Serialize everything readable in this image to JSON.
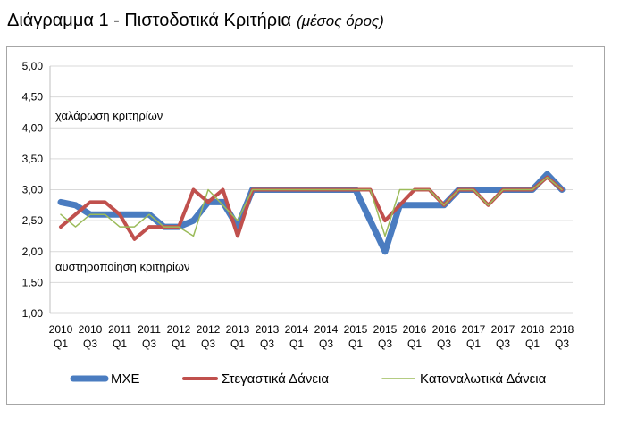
{
  "title": {
    "main": "Διάγραμμα 1 - Πιστοδοτικά Κριτήρια",
    "sub": "(μέσος όρος)"
  },
  "chart_data": {
    "type": "line",
    "ylim": [
      1.0,
      5.0
    ],
    "yticks": [
      "1,00",
      "1,50",
      "2,00",
      "2,50",
      "3,00",
      "3,50",
      "4,00",
      "4,50",
      "5,00"
    ],
    "ytick_values": [
      1.0,
      1.5,
      2.0,
      2.5,
      3.0,
      3.5,
      4.0,
      4.5,
      5.0
    ],
    "grid": "horizontal",
    "legend_position": "bottom",
    "x": [
      "2010 Q1",
      "2010 Q2",
      "2010 Q3",
      "2010 Q4",
      "2011 Q1",
      "2011 Q2",
      "2011 Q3",
      "2011 Q4",
      "2012 Q1",
      "2012 Q2",
      "2012 Q3",
      "2012 Q4",
      "2013 Q1",
      "2013 Q2",
      "2013 Q3",
      "2013 Q4",
      "2014 Q1",
      "2014 Q2",
      "2014 Q3",
      "2014 Q4",
      "2015 Q1",
      "2015 Q2",
      "2015 Q3",
      "2015 Q4",
      "2016 Q1",
      "2016 Q2",
      "2016 Q3",
      "2016 Q4",
      "2017 Q1",
      "2017 Q2",
      "2017 Q3",
      "2017 Q4",
      "2018 Q1",
      "2018 Q2",
      "2018 Q3"
    ],
    "xtick_labels": [
      [
        "2010",
        "Q1"
      ],
      [
        "2010",
        "Q3"
      ],
      [
        "2011",
        "Q1"
      ],
      [
        "2011",
        "Q3"
      ],
      [
        "2012",
        "Q1"
      ],
      [
        "2012",
        "Q3"
      ],
      [
        "2013",
        "Q1"
      ],
      [
        "2013",
        "Q3"
      ],
      [
        "2014",
        "Q1"
      ],
      [
        "2014",
        "Q3"
      ],
      [
        "2015",
        "Q1"
      ],
      [
        "2015",
        "Q3"
      ],
      [
        "2016",
        "Q1"
      ],
      [
        "2016",
        "Q3"
      ],
      [
        "2017",
        "Q1"
      ],
      [
        "2017",
        "Q3"
      ],
      [
        "2018",
        "Q1"
      ],
      [
        "2018",
        "Q3"
      ]
    ],
    "annotations": {
      "upper": "χαλάρωση κριτηρίων",
      "lower": "αυστηροποίηση κριτηρίων"
    },
    "series": [
      {
        "name": "ΜΧΕ",
        "color": "#4a7cc0",
        "values": [
          2.8,
          2.75,
          2.6,
          2.6,
          2.6,
          2.6,
          2.6,
          2.4,
          2.4,
          2.5,
          2.8,
          2.8,
          2.4,
          3.0,
          3.0,
          3.0,
          3.0,
          3.0,
          3.0,
          3.0,
          3.0,
          2.5,
          2.0,
          2.75,
          2.75,
          2.75,
          2.75,
          3.0,
          3.0,
          3.0,
          3.0,
          3.0,
          3.0,
          3.25,
          3.0
        ]
      },
      {
        "name": "Στεγαστικά Δάνεια",
        "color": "#c0504d",
        "values": [
          2.4,
          2.6,
          2.8,
          2.8,
          2.6,
          2.2,
          2.4,
          2.4,
          2.4,
          3.0,
          2.8,
          3.0,
          2.25,
          3.0,
          3.0,
          3.0,
          3.0,
          3.0,
          3.0,
          3.0,
          3.0,
          3.0,
          2.5,
          2.75,
          3.0,
          3.0,
          2.75,
          3.0,
          3.0,
          2.75,
          3.0,
          3.0,
          3.0,
          3.2,
          3.0
        ]
      },
      {
        "name": "Καταναλωτικά Δάνεια",
        "color": "#9bbb59",
        "values": [
          2.6,
          2.4,
          2.6,
          2.6,
          2.4,
          2.4,
          2.6,
          2.4,
          2.4,
          2.25,
          3.0,
          2.75,
          2.5,
          3.0,
          3.0,
          3.0,
          3.0,
          3.0,
          3.0,
          3.0,
          3.0,
          3.0,
          2.25,
          3.0,
          3.0,
          3.0,
          2.75,
          3.0,
          3.0,
          2.75,
          3.0,
          3.0,
          3.0,
          3.2,
          3.0
        ]
      }
    ]
  }
}
